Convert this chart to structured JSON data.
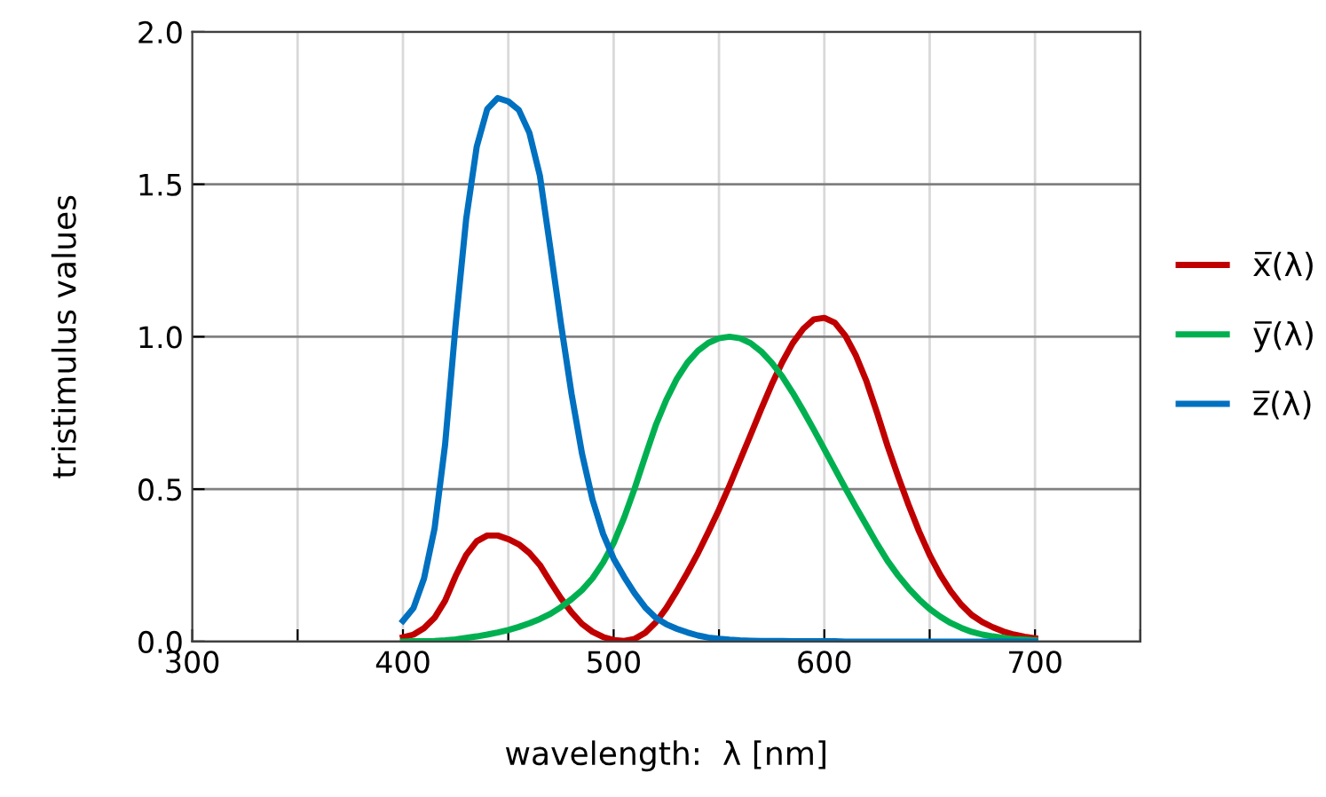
{
  "chart_data": {
    "type": "line",
    "xlabel": "wavelength:  λ [nm]",
    "ylabel": "tristimulus values",
    "x": [
      400,
      405,
      410,
      415,
      420,
      425,
      430,
      435,
      440,
      445,
      450,
      455,
      460,
      465,
      470,
      475,
      480,
      485,
      490,
      495,
      500,
      505,
      510,
      515,
      520,
      525,
      530,
      535,
      540,
      545,
      550,
      555,
      560,
      565,
      570,
      575,
      580,
      585,
      590,
      595,
      600,
      605,
      610,
      615,
      620,
      625,
      630,
      635,
      640,
      645,
      650,
      655,
      660,
      665,
      670,
      675,
      680,
      685,
      690,
      695,
      700
    ],
    "series": [
      {
        "name": "x̅(λ)",
        "color": "#c00000",
        "values": [
          0.014,
          0.023,
          0.044,
          0.078,
          0.134,
          0.215,
          0.284,
          0.329,
          0.348,
          0.348,
          0.336,
          0.319,
          0.291,
          0.251,
          0.195,
          0.142,
          0.096,
          0.058,
          0.032,
          0.015,
          0.005,
          0.002,
          0.009,
          0.029,
          0.063,
          0.11,
          0.166,
          0.226,
          0.29,
          0.36,
          0.433,
          0.512,
          0.595,
          0.678,
          0.762,
          0.843,
          0.916,
          0.979,
          1.026,
          1.057,
          1.062,
          1.046,
          1.003,
          0.938,
          0.854,
          0.751,
          0.642,
          0.542,
          0.448,
          0.361,
          0.284,
          0.219,
          0.165,
          0.121,
          0.087,
          0.064,
          0.047,
          0.033,
          0.023,
          0.016,
          0.011
        ]
      },
      {
        "name": "y̅(λ)",
        "color": "#00b050",
        "values": [
          0.0,
          0.001,
          0.001,
          0.002,
          0.004,
          0.007,
          0.012,
          0.017,
          0.023,
          0.03,
          0.038,
          0.048,
          0.06,
          0.074,
          0.091,
          0.113,
          0.139,
          0.169,
          0.208,
          0.259,
          0.323,
          0.407,
          0.503,
          0.608,
          0.71,
          0.793,
          0.862,
          0.915,
          0.954,
          0.98,
          0.995,
          1.0,
          0.995,
          0.979,
          0.952,
          0.915,
          0.87,
          0.816,
          0.757,
          0.695,
          0.631,
          0.567,
          0.503,
          0.441,
          0.381,
          0.321,
          0.265,
          0.217,
          0.175,
          0.138,
          0.107,
          0.082,
          0.061,
          0.045,
          0.032,
          0.023,
          0.017,
          0.012,
          0.008,
          0.006,
          0.004
        ]
      },
      {
        "name": "z̅(λ)",
        "color": "#0070c0",
        "values": [
          0.068,
          0.11,
          0.207,
          0.371,
          0.646,
          1.039,
          1.386,
          1.623,
          1.747,
          1.783,
          1.772,
          1.744,
          1.669,
          1.528,
          1.288,
          1.042,
          0.813,
          0.616,
          0.465,
          0.353,
          0.272,
          0.212,
          0.158,
          0.112,
          0.078,
          0.057,
          0.042,
          0.03,
          0.02,
          0.013,
          0.009,
          0.006,
          0.004,
          0.003,
          0.002,
          0.002,
          0.002,
          0.001,
          0.001,
          0.001,
          0.001,
          0.001,
          0.0,
          0.0,
          0.0,
          0.0,
          0.0,
          0.0,
          0.0,
          0.0,
          0.0,
          0.0,
          0.0,
          0.0,
          0.0,
          0.0,
          0.0,
          0.0,
          0.0,
          0.0,
          0.0
        ]
      }
    ],
    "xlim": [
      300,
      750
    ],
    "xticks": [
      300,
      {
        "value": 350,
        "label": null
      },
      400,
      {
        "value": 450,
        "label": null
      },
      500,
      {
        "value": 550,
        "label": null
      },
      600,
      {
        "value": 650,
        "label": null
      },
      700,
      {
        "value": 750,
        "label": null
      }
    ],
    "ylim": [
      0,
      2
    ],
    "yticks": [
      {
        "value": 0,
        "label": "0.0"
      },
      {
        "value": 0.5,
        "label": "0.5"
      },
      {
        "value": 1,
        "label": "1.0"
      },
      {
        "value": 1.5,
        "label": "1.5"
      },
      {
        "value": 2,
        "label": "2.0"
      }
    ],
    "grid": true,
    "legend": "right",
    "marker": "none",
    "line_style": "solid"
  }
}
